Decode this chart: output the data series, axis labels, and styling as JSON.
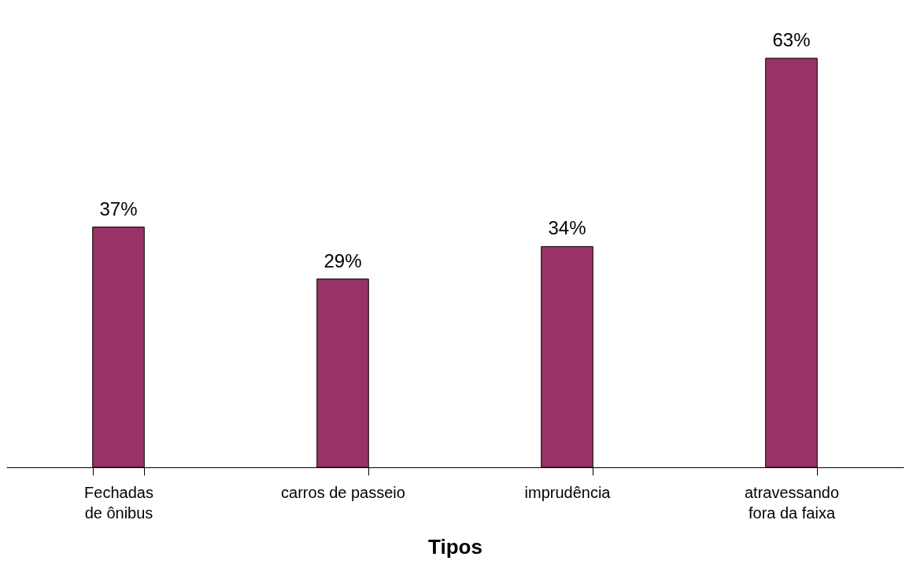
{
  "chart_data": {
    "type": "bar",
    "xlabel": "Tipos",
    "categories": [
      "Fechadas\nde ônibus",
      "carros de passeio",
      "imprudência",
      "atravessando\nfora da faixa"
    ],
    "values": [
      37,
      29,
      34,
      63
    ],
    "value_labels": [
      "37%",
      "29%",
      "34%",
      "63%"
    ],
    "color": "#993366",
    "grid": false
  }
}
